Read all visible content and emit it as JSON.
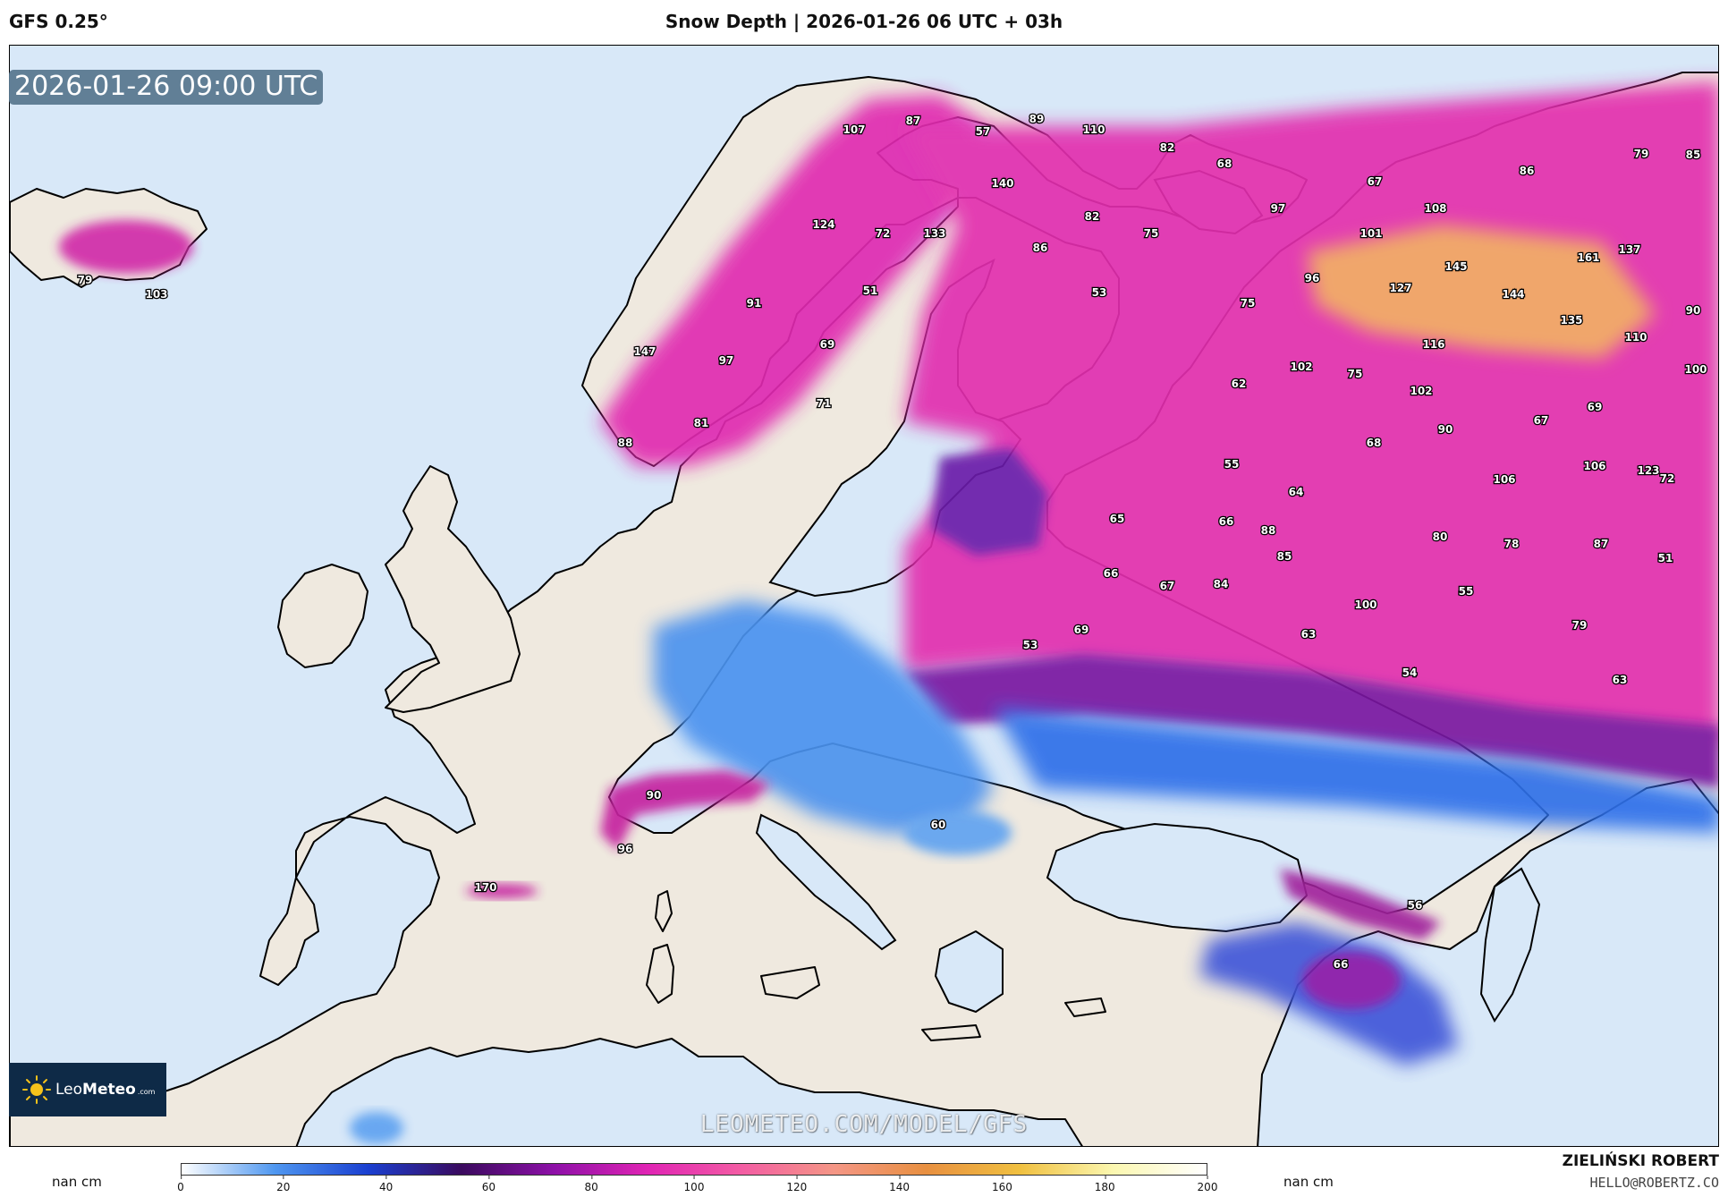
{
  "header": {
    "model": "GFS 0.25°",
    "title": "Snow Depth | 2026-01-26 06 UTC + 03h"
  },
  "map": {
    "valid_time": "2026-01-26 09:00 UTC",
    "watermark": "LEOMETEO.COM/MODEL/GFS",
    "colors": {
      "sea": "#d8e8f8",
      "land": "#efe9df",
      "border": "#000000"
    },
    "labels": [
      {
        "text": "107"
      },
      {
        "text": "87"
      },
      {
        "text": "57"
      },
      {
        "text": "89"
      },
      {
        "text": "110"
      },
      {
        "text": "82"
      },
      {
        "text": "68"
      },
      {
        "text": "140"
      },
      {
        "text": "97"
      },
      {
        "text": "124"
      },
      {
        "text": "72"
      },
      {
        "text": "133"
      },
      {
        "text": "82"
      },
      {
        "text": "75"
      },
      {
        "text": "86"
      },
      {
        "text": "67"
      },
      {
        "text": "108"
      },
      {
        "text": "101"
      },
      {
        "text": "86"
      },
      {
        "text": "79"
      },
      {
        "text": "85"
      },
      {
        "text": "79"
      },
      {
        "text": "103"
      },
      {
        "text": "51"
      },
      {
        "text": "91"
      },
      {
        "text": "53"
      },
      {
        "text": "75"
      },
      {
        "text": "96"
      },
      {
        "text": "127"
      },
      {
        "text": "145"
      },
      {
        "text": "144"
      },
      {
        "text": "161"
      },
      {
        "text": "137"
      },
      {
        "text": "90"
      },
      {
        "text": "147"
      },
      {
        "text": "69"
      },
      {
        "text": "97"
      },
      {
        "text": "116"
      },
      {
        "text": "135"
      },
      {
        "text": "110"
      },
      {
        "text": "71"
      },
      {
        "text": "81"
      },
      {
        "text": "62"
      },
      {
        "text": "102"
      },
      {
        "text": "75"
      },
      {
        "text": "102"
      },
      {
        "text": "100"
      },
      {
        "text": "88"
      },
      {
        "text": "69"
      },
      {
        "text": "67"
      },
      {
        "text": "90"
      },
      {
        "text": "68"
      },
      {
        "text": "55"
      },
      {
        "text": "64"
      },
      {
        "text": "106"
      },
      {
        "text": "123"
      },
      {
        "text": "106"
      },
      {
        "text": "72"
      },
      {
        "text": "65"
      },
      {
        "text": "66"
      },
      {
        "text": "88"
      },
      {
        "text": "80"
      },
      {
        "text": "78"
      },
      {
        "text": "87"
      },
      {
        "text": "85"
      },
      {
        "text": "66"
      },
      {
        "text": "67"
      },
      {
        "text": "84"
      },
      {
        "text": "51"
      },
      {
        "text": "55"
      },
      {
        "text": "100"
      },
      {
        "text": "69"
      },
      {
        "text": "53"
      },
      {
        "text": "63"
      },
      {
        "text": "79"
      },
      {
        "text": "54"
      },
      {
        "text": "63"
      },
      {
        "text": "90"
      },
      {
        "text": "60"
      },
      {
        "text": "96"
      },
      {
        "text": "170"
      },
      {
        "text": "56"
      },
      {
        "text": "66"
      }
    ]
  },
  "logo": {
    "name_light": "Leo",
    "name_bold": "Meteo",
    "suffix": ".com"
  },
  "legend": {
    "nan_label_left": "nan cm",
    "nan_label_right": "nan cm",
    "ticks": [
      "0",
      "20",
      "40",
      "60",
      "80",
      "100",
      "120",
      "140",
      "160",
      "180",
      "200"
    ],
    "range": [
      0,
      200
    ],
    "colors": [
      "#ffffff",
      "#4f97f0",
      "#1a3fd0",
      "#3a0a5e",
      "#8e10a8",
      "#e024b4",
      "#f35ca4",
      "#f49686",
      "#e89040",
      "#f0c040",
      "#fbf7b0",
      "#ffffff"
    ]
  },
  "credit": {
    "name": "ZIELIŃSKI ROBERT",
    "email": "HELLO@ROBERTZ.CO"
  }
}
